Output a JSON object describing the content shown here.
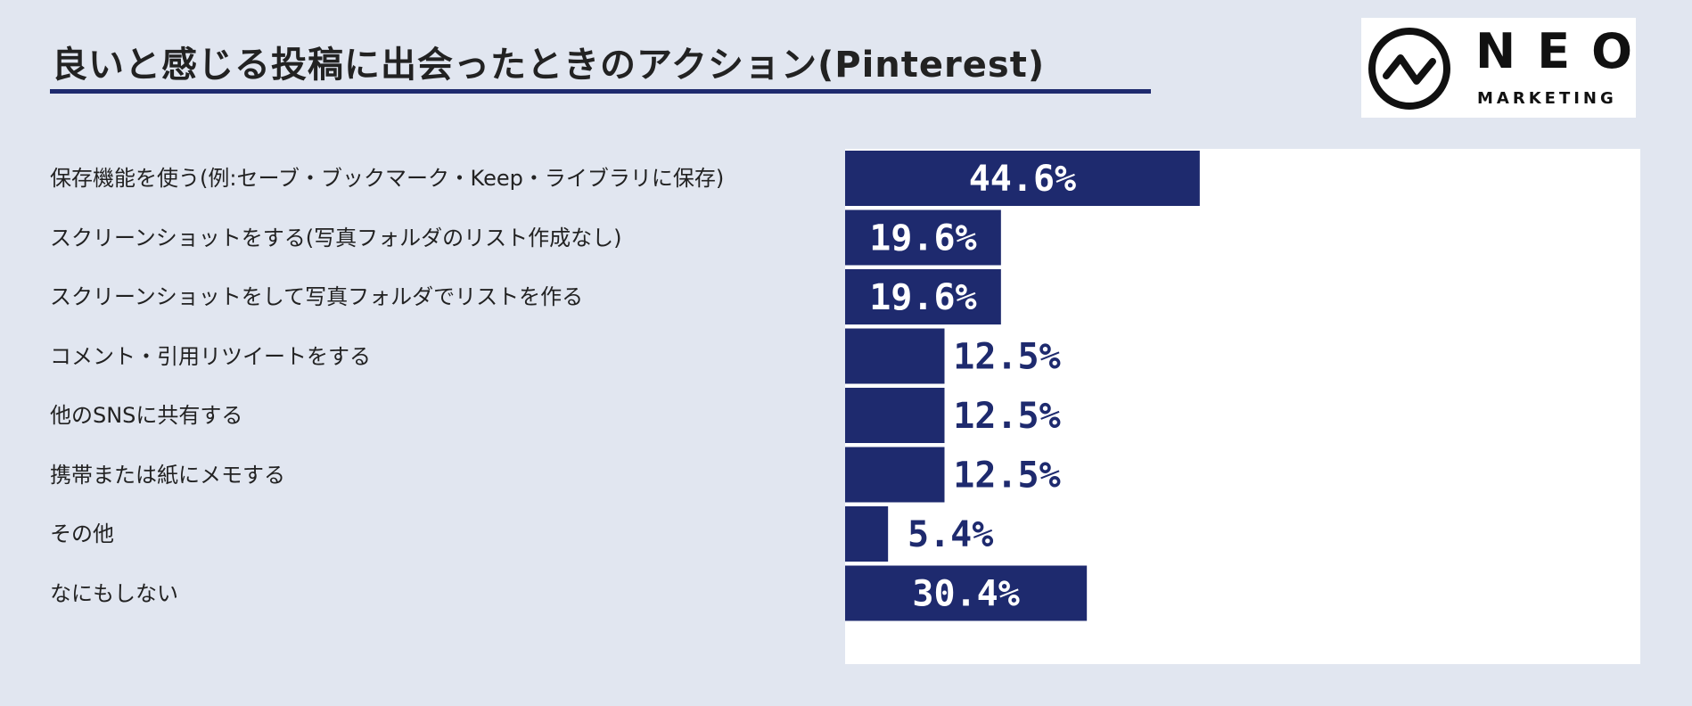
{
  "chart_data": {
    "type": "bar",
    "orientation": "horizontal",
    "title": "良いと感じる投稿に出会ったときのアクション(Pinterest)",
    "categories": [
      "保存機能を使う(例:セーブ・ブックマーク・Keep・ライブラリに保存)",
      "スクリーンショットをする(写真フォルダのリスト作成なし)",
      "スクリーンショットをして写真フォルダでリストを作る",
      "コメント・引用リツイートをする",
      "他のSNSに共有する",
      "携帯または紙にメモする",
      "その他",
      "なにもしない"
    ],
    "values": [
      44.6,
      19.6,
      19.6,
      12.5,
      12.5,
      12.5,
      5.4,
      30.4
    ],
    "value_labels": [
      "44.6%",
      "19.6%",
      "19.6%",
      "12.5%",
      "12.5%",
      "12.5%",
      "5.4%",
      "30.4%"
    ],
    "xlim": [
      0,
      100
    ],
    "grid": false,
    "bar_color": "#1e2a6e",
    "label_inside_color": "#ffffff",
    "label_outside_color": "#1e2a6e"
  },
  "logo": {
    "word": "NEO",
    "sub": "MARKETING",
    "icon": "neo-circle-zigzag-icon"
  },
  "colors": {
    "background": "#e1e6f0",
    "accent": "#1e2a6e"
  }
}
